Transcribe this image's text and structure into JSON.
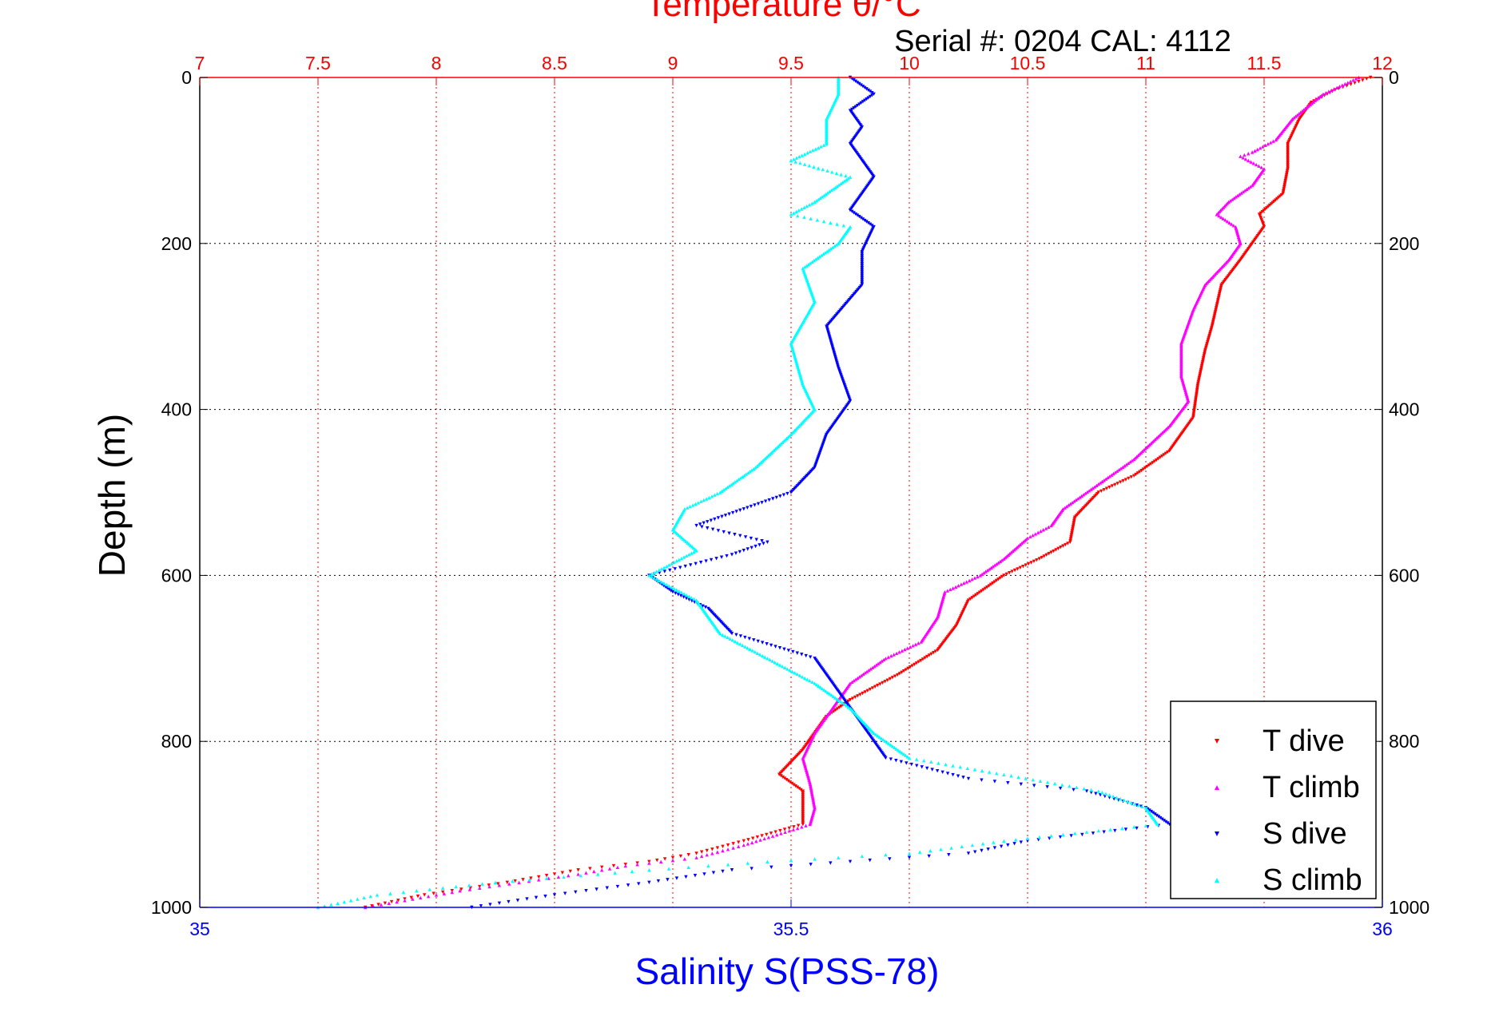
{
  "chart_data": {
    "type": "scatter",
    "title_top": "Temperature θ/°C",
    "serial_label": "Serial #: 0204  CAL: 4112",
    "xlabel_bottom": "Salinity S(PSS-78)",
    "ylabel": "Depth (m)",
    "y_axis": {
      "range": [
        0,
        1000
      ],
      "reversed": true,
      "ticks": [
        "0",
        "200",
        "400",
        "600",
        "800",
        "1000"
      ],
      "tick_values": [
        0,
        200,
        400,
        600,
        800,
        1000
      ]
    },
    "x_top_axis": {
      "range": [
        7,
        12
      ],
      "ticks": [
        "7",
        "7.5",
        "8",
        "8.5",
        "9",
        "9.5",
        "10",
        "10.5",
        "11",
        "11.5",
        "12"
      ],
      "tick_values": [
        7,
        7.5,
        8,
        8.5,
        9,
        9.5,
        10,
        10.5,
        11,
        11.5,
        12
      ]
    },
    "x_bottom_axis": {
      "range": [
        35,
        36
      ],
      "ticks": [
        "35",
        "35.5",
        "36"
      ],
      "tick_values": [
        35,
        35.5,
        36
      ]
    },
    "grid": true,
    "legend_position": "bottom-right",
    "colors": {
      "top_axis": "#ff0000",
      "bottom_axis": "#0000ff",
      "grid_vertical": "#ff0000",
      "grid_horizontal": "#000000"
    },
    "series": [
      {
        "name": "T dive",
        "axis": "top",
        "color": "#ff0000",
        "marker": "triangle-down",
        "points": [
          [
            11.95,
            0
          ],
          [
            11.8,
            15
          ],
          [
            11.7,
            30
          ],
          [
            11.65,
            50
          ],
          [
            11.6,
            80
          ],
          [
            11.6,
            110
          ],
          [
            11.58,
            140
          ],
          [
            11.48,
            165
          ],
          [
            11.5,
            180
          ],
          [
            11.45,
            200
          ],
          [
            11.4,
            220
          ],
          [
            11.32,
            250
          ],
          [
            11.28,
            300
          ],
          [
            11.25,
            330
          ],
          [
            11.22,
            370
          ],
          [
            11.2,
            410
          ],
          [
            11.1,
            450
          ],
          [
            10.95,
            480
          ],
          [
            10.8,
            500
          ],
          [
            10.7,
            530
          ],
          [
            10.68,
            560
          ],
          [
            10.55,
            580
          ],
          [
            10.4,
            600
          ],
          [
            10.25,
            630
          ],
          [
            10.2,
            660
          ],
          [
            10.12,
            690
          ],
          [
            9.95,
            720
          ],
          [
            9.75,
            750
          ],
          [
            9.65,
            770
          ],
          [
            9.6,
            790
          ],
          [
            9.55,
            810
          ],
          [
            9.45,
            840
          ],
          [
            9.55,
            860
          ],
          [
            9.55,
            880
          ],
          [
            9.55,
            900
          ],
          [
            9.3,
            920
          ],
          [
            9.1,
            935
          ],
          [
            8.9,
            945
          ],
          [
            8.6,
            955
          ],
          [
            8.3,
            970
          ],
          [
            7.95,
            985
          ],
          [
            7.7,
            1000
          ]
        ]
      },
      {
        "name": "T climb",
        "axis": "top",
        "color": "#ff00ff",
        "marker": "triangle-up",
        "points": [
          [
            11.9,
            0
          ],
          [
            11.75,
            20
          ],
          [
            11.62,
            50
          ],
          [
            11.55,
            75
          ],
          [
            11.45,
            90
          ],
          [
            11.4,
            95
          ],
          [
            11.5,
            110
          ],
          [
            11.45,
            130
          ],
          [
            11.35,
            150
          ],
          [
            11.3,
            165
          ],
          [
            11.38,
            180
          ],
          [
            11.4,
            200
          ],
          [
            11.35,
            220
          ],
          [
            11.25,
            250
          ],
          [
            11.2,
            280
          ],
          [
            11.15,
            320
          ],
          [
            11.15,
            360
          ],
          [
            11.18,
            390
          ],
          [
            11.1,
            420
          ],
          [
            10.95,
            460
          ],
          [
            10.8,
            490
          ],
          [
            10.65,
            520
          ],
          [
            10.6,
            540
          ],
          [
            10.5,
            555
          ],
          [
            10.4,
            580
          ],
          [
            10.3,
            600
          ],
          [
            10.15,
            620
          ],
          [
            10.12,
            650
          ],
          [
            10.05,
            680
          ],
          [
            9.9,
            700
          ],
          [
            9.75,
            730
          ],
          [
            9.7,
            750
          ],
          [
            9.65,
            770
          ],
          [
            9.6,
            790
          ],
          [
            9.55,
            820
          ],
          [
            9.58,
            850
          ],
          [
            9.6,
            880
          ],
          [
            9.58,
            900
          ],
          [
            9.3,
            925
          ],
          [
            9.1,
            940
          ],
          [
            8.8,
            950
          ],
          [
            8.6,
            960
          ],
          [
            8.35,
            970
          ],
          [
            8.1,
            980
          ],
          [
            7.9,
            990
          ],
          [
            7.7,
            1000
          ]
        ]
      },
      {
        "name": "S dive",
        "axis": "bottom",
        "color": "#0000ff",
        "marker": "triangle-down",
        "points": [
          [
            35.55,
            0
          ],
          [
            35.57,
            20
          ],
          [
            35.55,
            40
          ],
          [
            35.56,
            60
          ],
          [
            35.55,
            80
          ],
          [
            35.56,
            100
          ],
          [
            35.57,
            120
          ],
          [
            35.55,
            160
          ],
          [
            35.57,
            180
          ],
          [
            35.56,
            210
          ],
          [
            35.56,
            250
          ],
          [
            35.53,
            300
          ],
          [
            35.54,
            350
          ],
          [
            35.55,
            390
          ],
          [
            35.53,
            430
          ],
          [
            35.52,
            470
          ],
          [
            35.5,
            500
          ],
          [
            35.46,
            520
          ],
          [
            35.42,
            540
          ],
          [
            35.48,
            560
          ],
          [
            35.45,
            575
          ],
          [
            35.38,
            600
          ],
          [
            35.4,
            620
          ],
          [
            35.43,
            640
          ],
          [
            35.45,
            670
          ],
          [
            35.52,
            700
          ],
          [
            35.54,
            740
          ],
          [
            35.56,
            780
          ],
          [
            35.58,
            820
          ],
          [
            35.65,
            845
          ],
          [
            35.75,
            860
          ],
          [
            35.8,
            880
          ],
          [
            35.82,
            900
          ],
          [
            35.7,
            920
          ],
          [
            35.65,
            935
          ],
          [
            35.55,
            945
          ],
          [
            35.45,
            955
          ],
          [
            35.38,
            970
          ],
          [
            35.3,
            985
          ],
          [
            35.23,
            1000
          ]
        ]
      },
      {
        "name": "S climb",
        "axis": "bottom",
        "color": "#00ffff",
        "marker": "triangle-up",
        "points": [
          [
            35.54,
            0
          ],
          [
            35.54,
            20
          ],
          [
            35.53,
            50
          ],
          [
            35.53,
            80
          ],
          [
            35.5,
            100
          ],
          [
            35.55,
            120
          ],
          [
            35.52,
            150
          ],
          [
            35.5,
            165
          ],
          [
            35.55,
            180
          ],
          [
            35.54,
            200
          ],
          [
            35.51,
            230
          ],
          [
            35.52,
            270
          ],
          [
            35.5,
            320
          ],
          [
            35.51,
            370
          ],
          [
            35.52,
            400
          ],
          [
            35.5,
            430
          ],
          [
            35.47,
            470
          ],
          [
            35.44,
            500
          ],
          [
            35.41,
            520
          ],
          [
            35.4,
            545
          ],
          [
            35.42,
            570
          ],
          [
            35.38,
            600
          ],
          [
            35.42,
            630
          ],
          [
            35.44,
            670
          ],
          [
            35.48,
            700
          ],
          [
            35.52,
            730
          ],
          [
            35.55,
            760
          ],
          [
            35.57,
            790
          ],
          [
            35.6,
            820
          ],
          [
            35.68,
            840
          ],
          [
            35.76,
            860
          ],
          [
            35.8,
            880
          ],
          [
            35.81,
            900
          ],
          [
            35.68,
            920
          ],
          [
            35.6,
            935
          ],
          [
            35.48,
            945
          ],
          [
            35.38,
            955
          ],
          [
            35.25,
            970
          ],
          [
            35.15,
            985
          ],
          [
            35.1,
            1000
          ]
        ]
      }
    ]
  }
}
